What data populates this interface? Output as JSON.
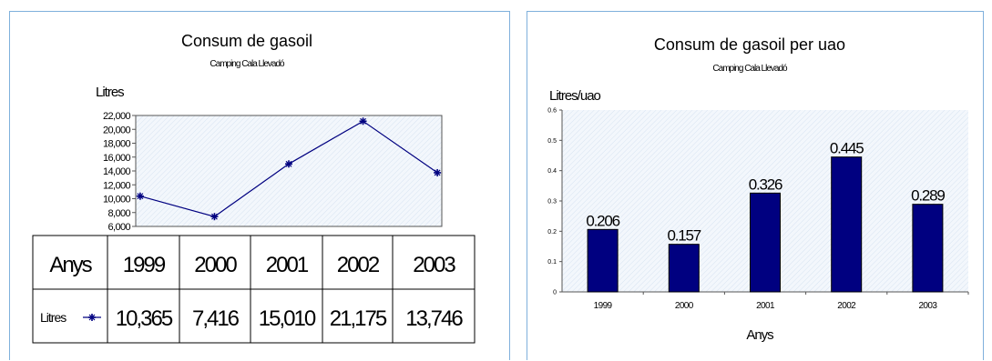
{
  "chart_data": [
    {
      "type": "line",
      "title": "Consum de gasoil",
      "subtitle": "Camping Cala Llevadó",
      "ylabel": "Litres",
      "xlabel": "",
      "ylim": [
        6000,
        22000
      ],
      "yticks": [
        "6,000",
        "8,000",
        "10,000",
        "12,000",
        "14,000",
        "16,000",
        "18,000",
        "20,000",
        "22,000"
      ],
      "ytick_values": [
        6000,
        8000,
        10000,
        12000,
        14000,
        16000,
        18000,
        20000,
        22000
      ],
      "grid": false,
      "color": "#000080",
      "x": [
        "1999",
        "2000",
        "2001",
        "2002",
        "2003"
      ],
      "series": [
        {
          "name": "Litres",
          "values": [
            10365,
            7416,
            15010,
            21175,
            13746
          ]
        }
      ],
      "table": {
        "row_header": "Anys",
        "x_labels": [
          "1999",
          "2000",
          "2001",
          "2002",
          "2003"
        ],
        "series_label": "Litres",
        "cells": [
          "10,365",
          "7,416",
          "15,010",
          "21,175",
          "13,746"
        ]
      }
    },
    {
      "type": "bar",
      "title": "Consum de gasoil per uao",
      "subtitle": "Camping Cala Llevadó",
      "ylabel": "Litres/uao",
      "xlabel": "Anys",
      "ylim": [
        0,
        0.6
      ],
      "yticks": [
        "0",
        "0.1",
        "0.2",
        "0.3",
        "0.4",
        "0.5",
        "0.6"
      ],
      "ytick_values": [
        0,
        0.1,
        0.2,
        0.3,
        0.4,
        0.5,
        0.6
      ],
      "grid": false,
      "color": "#000080",
      "categories": [
        "1999",
        "2000",
        "2001",
        "2002",
        "2003"
      ],
      "values": [
        0.206,
        0.157,
        0.326,
        0.445,
        0.289
      ],
      "data_labels": [
        "0.206",
        "0.157",
        "0.326",
        "0.445",
        "0.289"
      ]
    }
  ]
}
